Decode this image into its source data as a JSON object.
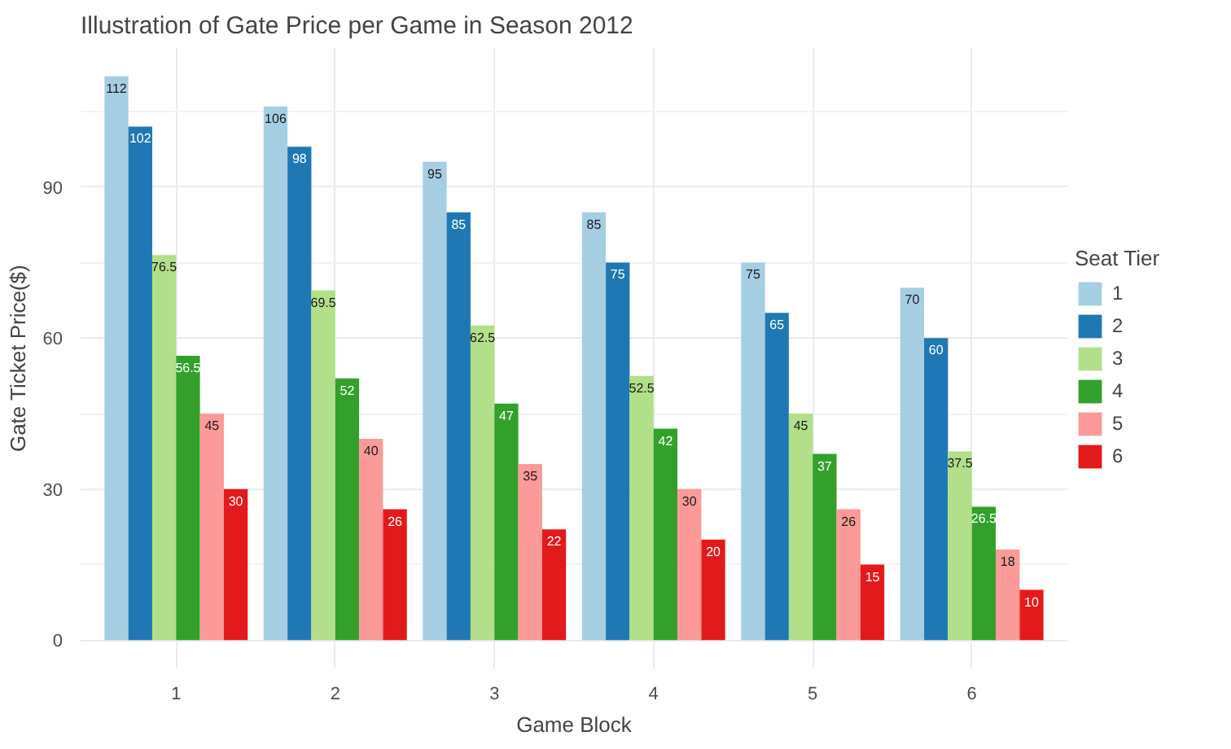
{
  "chart_data": {
    "type": "bar",
    "title": "Illustration of Gate Price per Game in Season 2012",
    "xlabel": "Game Block",
    "ylabel": "Gate Ticket Price($)",
    "legend_title": "Seat Tier",
    "categories": [
      "1",
      "2",
      "3",
      "4",
      "5",
      "6"
    ],
    "series": [
      {
        "name": "1",
        "color": "#a6cee3",
        "values": [
          112,
          106,
          95,
          85,
          75,
          70
        ]
      },
      {
        "name": "2",
        "color": "#1f78b4",
        "values": [
          102,
          98,
          85,
          75,
          65,
          60
        ]
      },
      {
        "name": "3",
        "color": "#b2df8a",
        "values": [
          76.5,
          69.5,
          62.5,
          52.5,
          45,
          37.5
        ]
      },
      {
        "name": "4",
        "color": "#33a02c",
        "values": [
          56.5,
          52,
          47,
          42,
          37,
          26.5
        ]
      },
      {
        "name": "5",
        "color": "#fb9a99",
        "values": [
          45,
          40,
          35,
          30,
          26,
          18
        ]
      },
      {
        "name": "6",
        "color": "#e31a1c",
        "values": [
          30,
          26,
          22,
          20,
          15,
          10
        ]
      }
    ],
    "ylim": [
      -5.6,
      117.6
    ],
    "yticks": [
      0,
      30,
      60,
      90
    ],
    "grid": true,
    "legend": "right",
    "data_labels": true
  }
}
